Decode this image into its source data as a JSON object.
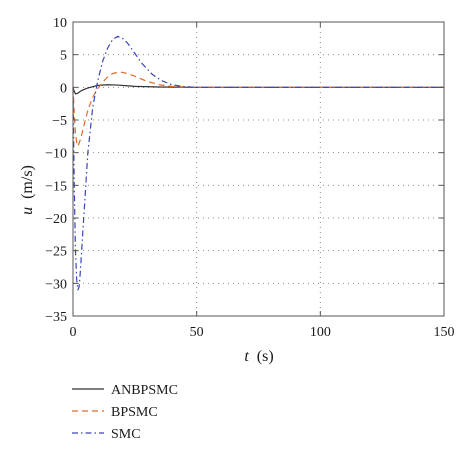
{
  "chart_data": {
    "type": "line",
    "xlabel": {
      "symbol": "t",
      "unit": "(s)"
    },
    "ylabel": {
      "symbol": "u",
      "unit": "(m/s)"
    },
    "xlim": [
      0,
      150
    ],
    "ylim": [
      -35,
      10
    ],
    "xticks": [
      0,
      50,
      100,
      150
    ],
    "yticks": [
      10,
      5,
      0,
      -5,
      -10,
      -15,
      -20,
      -25,
      -30,
      -35
    ],
    "grid": true,
    "legend_position": "below",
    "series": [
      {
        "name": "ANBPSMC",
        "color": "#333333",
        "dash": "solid",
        "x": [
          0,
          0.5,
          1,
          2,
          3,
          4,
          6,
          8,
          10,
          14,
          18,
          25,
          35,
          50,
          100,
          150
        ],
        "y": [
          0,
          -0.6,
          -1.0,
          -0.9,
          -0.6,
          -0.4,
          -0.1,
          0.1,
          0.3,
          0.4,
          0.35,
          0.15,
          0.05,
          0,
          0,
          0
        ]
      },
      {
        "name": "BPSMC",
        "color": "#e06a2c",
        "dash": "dashed",
        "x": [
          0,
          0.5,
          1,
          1.5,
          2,
          3,
          4,
          6,
          8,
          10,
          12,
          14,
          16,
          18,
          20,
          22,
          25,
          30,
          35,
          40,
          50,
          60,
          100,
          150
        ],
        "y": [
          0,
          -4,
          -7,
          -8.5,
          -9,
          -8,
          -6.5,
          -3.5,
          -1.5,
          -0.2,
          0.8,
          1.6,
          2.1,
          2.3,
          2.3,
          2.1,
          1.7,
          0.9,
          0.4,
          0.15,
          0,
          0,
          0,
          0
        ]
      },
      {
        "name": "SMC",
        "color": "#3a44b8",
        "dash": "dashdot",
        "x": [
          0,
          0.5,
          1,
          1.5,
          2,
          2.5,
          3,
          4,
          5,
          6,
          8,
          10,
          12,
          14,
          16,
          18,
          20,
          22,
          25,
          28,
          32,
          36,
          40,
          45,
          50,
          60,
          100,
          150
        ],
        "y": [
          0,
          -15,
          -25,
          -29.5,
          -31,
          -30.5,
          -28,
          -22,
          -16,
          -10,
          -3,
          1,
          4,
          6,
          7.3,
          7.8,
          7.5,
          6.8,
          5.2,
          3.6,
          2.0,
          1.0,
          0.4,
          0.1,
          0,
          0,
          0,
          0
        ]
      }
    ]
  }
}
